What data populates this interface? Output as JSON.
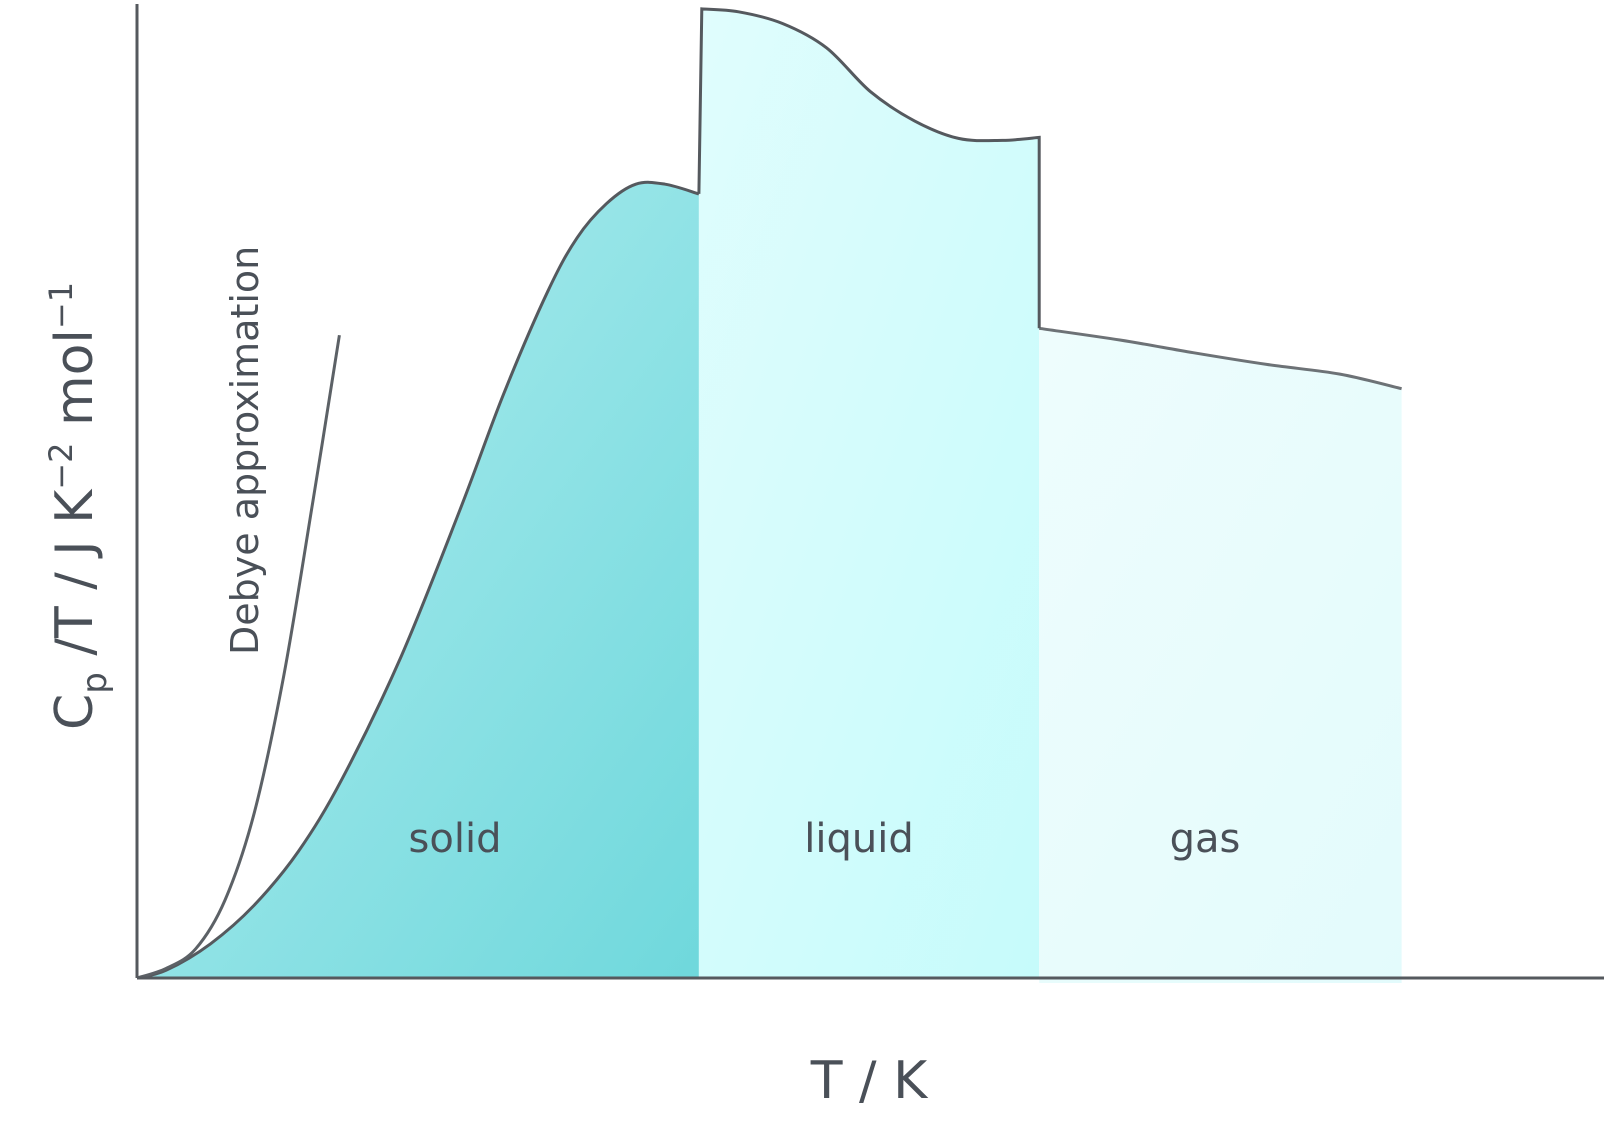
{
  "chart_data": {
    "type": "area",
    "xlabel": "T / K",
    "ylabel": {
      "main": "C",
      "subscript": "p",
      "rest": " /T / J K",
      "sup1": "−2",
      "mid": " mol",
      "sup2": "−1"
    },
    "xlim": [
      0,
      1000
    ],
    "ylim": [
      0,
      100
    ],
    "grid": false,
    "legend": "none",
    "series": [
      {
        "name": "solid",
        "color": "#6fd8dc",
        "x": [
          0,
          20,
          50,
          80,
          110,
          140,
          180,
          220,
          250,
          280,
          300,
          320,
          340,
          360,
          383
        ],
        "y": [
          0,
          0.8,
          3.5,
          7.5,
          13,
          20.5,
          33,
          48,
          60,
          70.5,
          76,
          79.5,
          81.5,
          81.5,
          80.5
        ]
      },
      {
        "name": "liquid",
        "color": "#c6fbfb",
        "x": [
          383,
          385,
          410,
          440,
          470,
          500,
          530,
          560,
          590,
          615,
          615
        ],
        "y": [
          80.5,
          99.5,
          99.2,
          98,
          95.5,
          91,
          88,
          86.2,
          86,
          86.3,
          0
        ]
      },
      {
        "name": "gas",
        "color": "#e3fbfc",
        "x": [
          615,
          670,
          720,
          770,
          820,
          862
        ],
        "y": [
          66.7,
          65.5,
          64.2,
          63,
          62,
          60.5
        ]
      },
      {
        "name": "Debye approximation",
        "color": "#5c6166",
        "x": [
          0,
          20,
          40,
          60,
          80,
          100,
          120,
          138
        ],
        "y": [
          0,
          1,
          3,
          8,
          17,
          31,
          49,
          66
        ]
      }
    ],
    "annotations": [
      "solid",
      "liquid",
      "gas",
      "Debye approximation"
    ]
  }
}
